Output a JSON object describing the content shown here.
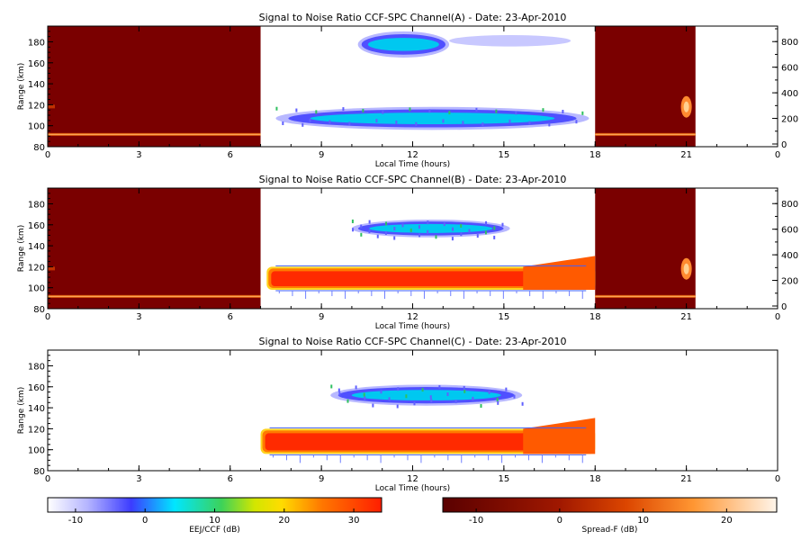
{
  "chart_data": [
    {
      "type": "heatmap",
      "title": "Signal to Noise Ratio CCF-SPC Channel(A) - Date: 23-Apr-2010",
      "xlabel": "Local Time (hours)",
      "ylabel": "Range (km)",
      "xlim": [
        0,
        24
      ],
      "ylim": [
        80,
        195
      ],
      "xticks": [
        "0",
        "3",
        "6",
        "9",
        "12",
        "15",
        "18",
        "21",
        "0"
      ],
      "yticks": [
        "80",
        "100",
        "120",
        "140",
        "160",
        "180"
      ],
      "yticks_right": [
        "0",
        "200",
        "400",
        "600",
        "800"
      ],
      "night_blocks_hours": [
        [
          0,
          7
        ],
        [
          18,
          21.3
        ]
      ],
      "daytime_echoes": [
        {
          "layer": "150 km echo",
          "t_start": 10.2,
          "t_end": 13.2,
          "range_km": [
            165,
            190
          ],
          "snr_db": [
            -10,
            0
          ]
        },
        {
          "layer": "150 km echo tail",
          "t_start": 13.2,
          "t_end": 17.2,
          "range_km": [
            172,
            190
          ],
          "snr_db": [
            -12,
            -8
          ]
        },
        {
          "layer": "E region (EEJ)",
          "t_start": 7.5,
          "t_end": 17.8,
          "range_km": [
            96,
            118
          ],
          "snr_db": [
            -5,
            5
          ]
        }
      ]
    },
    {
      "type": "heatmap",
      "title": "Signal to Noise Ratio CCF-SPC Channel(B) - Date: 23-Apr-2010",
      "xlabel": "Local Time (hours)",
      "ylabel": "Range (km)",
      "xlim": [
        0,
        24
      ],
      "ylim": [
        80,
        195
      ],
      "xticks": [
        "0",
        "3",
        "6",
        "9",
        "12",
        "15",
        "18",
        "21",
        "0"
      ],
      "yticks": [
        "80",
        "100",
        "120",
        "140",
        "160",
        "180"
      ],
      "yticks_right": [
        "0",
        "200",
        "400",
        "600",
        "800"
      ],
      "night_blocks_hours": [
        [
          0,
          7
        ],
        [
          18,
          21.3
        ]
      ],
      "daytime_echoes": [
        {
          "layer": "150 km echo",
          "t_start": 10.0,
          "t_end": 15.2,
          "range_km": [
            148,
            165
          ],
          "snr_db": [
            -10,
            5
          ]
        },
        {
          "layer": "E region (EEJ)",
          "t_start": 7.2,
          "t_end": 18,
          "range_km": [
            98,
            120
          ],
          "snr_db": [
            10,
            32
          ]
        }
      ]
    },
    {
      "type": "heatmap",
      "title": "Signal to Noise Ratio CCF-SPC Channel(C) - Date: 23-Apr-2010",
      "xlabel": "Local Time (hours)",
      "ylabel": "Range (km)",
      "xlim": [
        0,
        24
      ],
      "ylim": [
        80,
        195
      ],
      "xticks": [
        "0",
        "3",
        "6",
        "9",
        "12",
        "15",
        "18",
        "21",
        "0"
      ],
      "yticks": [
        "80",
        "100",
        "120",
        "140",
        "160",
        "180"
      ],
      "night_blocks_hours": [],
      "daytime_echoes": [
        {
          "layer": "150 km echo",
          "t_start": 9.3,
          "t_end": 15.6,
          "range_km": [
            142,
            162
          ],
          "snr_db": [
            -10,
            5
          ]
        },
        {
          "layer": "E region (EEJ)",
          "t_start": 7.0,
          "t_end": 18,
          "range_km": [
            96,
            120
          ],
          "snr_db": [
            10,
            32
          ]
        }
      ]
    }
  ],
  "colorbars": [
    {
      "label": "EEJ/CCF (dB)",
      "range": [
        -14,
        34
      ],
      "ticks": [
        "-10",
        "0",
        "10",
        "20",
        "30"
      ],
      "tick_values": [
        -10,
        0,
        10,
        20,
        30
      ],
      "colormap": "rainbow"
    },
    {
      "label": "Spread-F (dB)",
      "range": [
        -14,
        26
      ],
      "ticks": [
        "-10",
        "0",
        "10",
        "20"
      ],
      "tick_values": [
        -10,
        0,
        10,
        20
      ],
      "colormap": "dark-red"
    }
  ]
}
